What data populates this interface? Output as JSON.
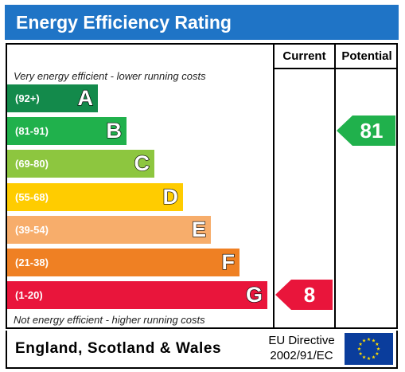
{
  "header": {
    "title": "Energy Efficiency Rating"
  },
  "columns": {
    "current": "Current",
    "potential": "Potential"
  },
  "notes": {
    "top": "Very energy efficient - lower running costs",
    "bottom": "Not energy efficient - higher running costs"
  },
  "footer": {
    "country": "England, Scotland & Wales",
    "directive_line1": "EU Directive",
    "directive_line2": "2002/91/EC",
    "flag_icon": "eu-flag-icon"
  },
  "colors": {
    "title_bg": "#1f74c6",
    "A": "#138a4b",
    "B": "#20b14c",
    "C": "#8dc63f",
    "D": "#ffcc00",
    "E": "#f7ad6b",
    "F": "#ef8023",
    "G": "#e9153b",
    "flag": "#0a3d9c",
    "flag_stars": "#ffdd00"
  },
  "chart_data": {
    "type": "bar",
    "categories": [
      "A",
      "B",
      "C",
      "D",
      "E",
      "F",
      "G"
    ],
    "ranges": [
      "(92+)",
      "(81-91)",
      "(69-80)",
      "(55-68)",
      "(39-54)",
      "(21-38)",
      "(1-20)"
    ],
    "current": {
      "value": "8",
      "band": "G"
    },
    "potential": {
      "value": "81",
      "band": "B"
    }
  }
}
